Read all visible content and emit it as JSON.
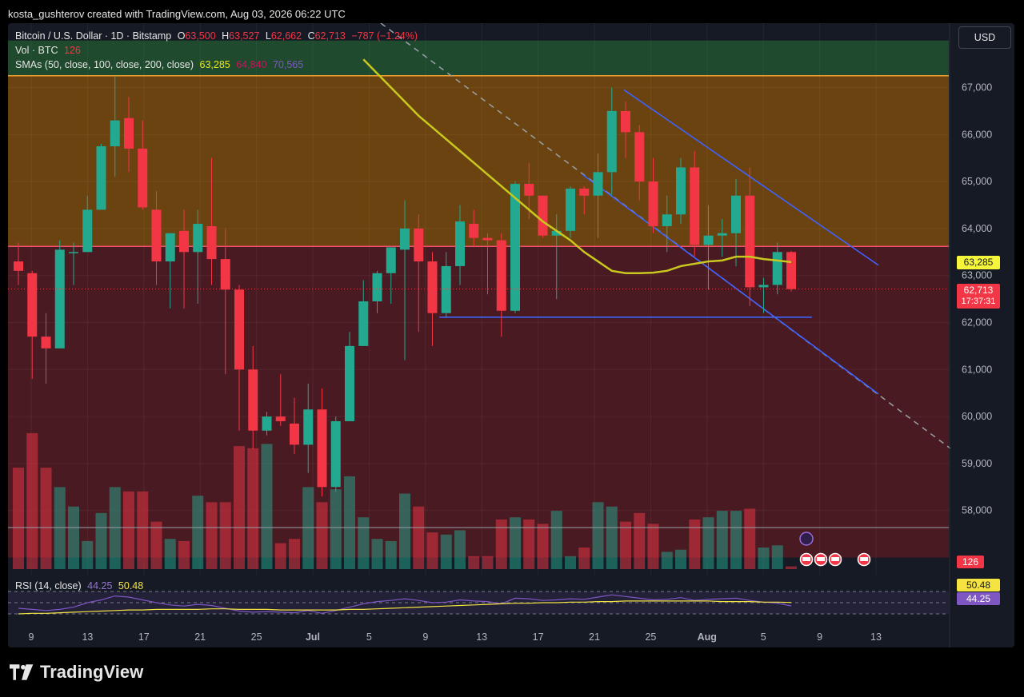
{
  "header": {
    "attribution": "kosta_gushterov created with TradingView.com, Aug 03, 2026 06:22 UTC"
  },
  "legend": {
    "symbol": "Bitcoin / U.S. Dollar · 1D · Bitstamp",
    "o_label": "O",
    "o": "63,500",
    "h_label": "H",
    "h": "63,527",
    "l_label": "L",
    "l": "62,662",
    "c_label": "C",
    "c": "62,713",
    "change": "−787 (−1.24%)",
    "vol_label": "Vol · BTC",
    "vol": "126",
    "sma_label": "SMAs (50, close, 100, close, 200, close)",
    "sma50": "63,285",
    "sma100": "64,840",
    "sma200": "70,565"
  },
  "rsi_legend": {
    "label": "RSI (14, close)",
    "rsi": "44.25",
    "ma": "50.48"
  },
  "currency": "USD",
  "tags": {
    "sma": "63,285",
    "price": "62,713",
    "countdown": "17:37:31",
    "volume": "126",
    "rsi_ma": "50.48",
    "rsi": "44.25"
  },
  "footer": {
    "brand": "TradingView"
  },
  "colors": {
    "up": "#22a98f",
    "down": "#f23645",
    "sma": "#c8c81e",
    "trend": "#2962ff",
    "rsi": "#7e57c2"
  },
  "chart_data": {
    "type": "candlestick",
    "interval": "1D",
    "y_range": [
      57000,
      68000
    ],
    "y_ticks": [
      "67,000",
      "66,000",
      "65,000",
      "64,000",
      "63,000",
      "62,000",
      "61,000",
      "60,000",
      "59,000",
      "58,000"
    ],
    "x_ticks": [
      "9",
      "13",
      "17",
      "21",
      "25",
      "Jul",
      "5",
      "9",
      "13",
      "17",
      "21",
      "25",
      "Aug",
      "5",
      "9",
      "13"
    ],
    "zones": [
      {
        "from": 67250,
        "to": 68000,
        "color": "green"
      },
      {
        "from": 63620,
        "to": 67250,
        "color": "orange"
      },
      {
        "from": 57000,
        "to": 63620,
        "color": "red"
      }
    ],
    "horizontal_lines": [
      67250,
      63620,
      62113
    ],
    "candles": [
      {
        "o": 63300,
        "h": 63700,
        "l": 62800,
        "c": 63100,
        "v": 4700
      },
      {
        "o": 63050,
        "h": 63100,
        "l": 60800,
        "c": 61700,
        "v": 6300
      },
      {
        "o": 61700,
        "h": 62200,
        "l": 60700,
        "c": 61450,
        "v": 4700
      },
      {
        "o": 61450,
        "h": 63750,
        "l": 61450,
        "c": 63550,
        "v": 3800
      },
      {
        "o": 63500,
        "h": 63700,
        "l": 62800,
        "c": 63500,
        "v": 2900
      },
      {
        "o": 63500,
        "h": 64700,
        "l": 63500,
        "c": 64400,
        "v": 1300
      },
      {
        "o": 64400,
        "h": 65800,
        "l": 64400,
        "c": 65750,
        "v": 2600
      },
      {
        "o": 65750,
        "h": 67250,
        "l": 65100,
        "c": 66300,
        "v": 3800
      },
      {
        "o": 66350,
        "h": 66800,
        "l": 65200,
        "c": 65700,
        "v": 3600
      },
      {
        "o": 65700,
        "h": 66300,
        "l": 64400,
        "c": 64450,
        "v": 3600
      },
      {
        "o": 64400,
        "h": 64800,
        "l": 62800,
        "c": 63300,
        "v": 2200
      },
      {
        "o": 63300,
        "h": 63900,
        "l": 62300,
        "c": 63900,
        "v": 1400
      },
      {
        "o": 63950,
        "h": 64400,
        "l": 62300,
        "c": 63500,
        "v": 1300
      },
      {
        "o": 63500,
        "h": 64400,
        "l": 62400,
        "c": 64100,
        "v": 3400
      },
      {
        "o": 64050,
        "h": 65500,
        "l": 62800,
        "c": 63350,
        "v": 3100
      },
      {
        "o": 63350,
        "h": 64000,
        "l": 60900,
        "c": 62700,
        "v": 3100
      },
      {
        "o": 62700,
        "h": 62800,
        "l": 59700,
        "c": 61000,
        "v": 5700
      },
      {
        "o": 61000,
        "h": 61500,
        "l": 59300,
        "c": 59700,
        "v": 5600
      },
      {
        "o": 59700,
        "h": 60100,
        "l": 59600,
        "c": 60000,
        "v": 5800
      },
      {
        "o": 60000,
        "h": 60900,
        "l": 59800,
        "c": 59900,
        "v": 1200
      },
      {
        "o": 59850,
        "h": 60400,
        "l": 59200,
        "c": 59400,
        "v": 1400
      },
      {
        "o": 59400,
        "h": 60700,
        "l": 58800,
        "c": 60150,
        "v": 3800
      },
      {
        "o": 60150,
        "h": 60600,
        "l": 58300,
        "c": 58500,
        "v": 3100
      },
      {
        "o": 58500,
        "h": 60000,
        "l": 58400,
        "c": 59900,
        "v": 3700
      },
      {
        "o": 59900,
        "h": 61800,
        "l": 59900,
        "c": 61500,
        "v": 4300
      },
      {
        "o": 61500,
        "h": 62900,
        "l": 61500,
        "c": 62450,
        "v": 2400
      },
      {
        "o": 62450,
        "h": 63100,
        "l": 62200,
        "c": 63050,
        "v": 1400
      },
      {
        "o": 63050,
        "h": 63600,
        "l": 62400,
        "c": 63600,
        "v": 1300
      },
      {
        "o": 63550,
        "h": 64600,
        "l": 61200,
        "c": 64000,
        "v": 3500
      },
      {
        "o": 64000,
        "h": 64300,
        "l": 61800,
        "c": 63300,
        "v": 2900
      },
      {
        "o": 63300,
        "h": 63500,
        "l": 61500,
        "c": 62200,
        "v": 1700
      },
      {
        "o": 62200,
        "h": 63500,
        "l": 62100,
        "c": 63200,
        "v": 1600
      },
      {
        "o": 63200,
        "h": 64500,
        "l": 62800,
        "c": 64150,
        "v": 1800
      },
      {
        "o": 64100,
        "h": 64400,
        "l": 63600,
        "c": 63800,
        "v": 600
      },
      {
        "o": 63800,
        "h": 63900,
        "l": 62600,
        "c": 63750,
        "v": 600
      },
      {
        "o": 63750,
        "h": 63900,
        "l": 61700,
        "c": 62250,
        "v": 2300
      },
      {
        "o": 62250,
        "h": 65000,
        "l": 62200,
        "c": 64950,
        "v": 2400
      },
      {
        "o": 64950,
        "h": 65400,
        "l": 64200,
        "c": 64700,
        "v": 2300
      },
      {
        "o": 64700,
        "h": 64700,
        "l": 63800,
        "c": 63850,
        "v": 2100
      },
      {
        "o": 63850,
        "h": 64300,
        "l": 62500,
        "c": 63950,
        "v": 2700
      },
      {
        "o": 63950,
        "h": 64900,
        "l": 63800,
        "c": 64850,
        "v": 600
      },
      {
        "o": 64850,
        "h": 64900,
        "l": 64300,
        "c": 64700,
        "v": 1000
      },
      {
        "o": 64700,
        "h": 65600,
        "l": 63800,
        "c": 65200,
        "v": 3100
      },
      {
        "o": 65200,
        "h": 67000,
        "l": 64700,
        "c": 66500,
        "v": 2900
      },
      {
        "o": 66500,
        "h": 66700,
        "l": 65500,
        "c": 66050,
        "v": 2200
      },
      {
        "o": 66050,
        "h": 66200,
        "l": 64600,
        "c": 65000,
        "v": 2600
      },
      {
        "o": 65000,
        "h": 65500,
        "l": 63900,
        "c": 64050,
        "v": 2100
      },
      {
        "o": 64050,
        "h": 64700,
        "l": 63500,
        "c": 64300,
        "v": 800
      },
      {
        "o": 64300,
        "h": 65500,
        "l": 64100,
        "c": 65300,
        "v": 900
      },
      {
        "o": 65300,
        "h": 65650,
        "l": 63400,
        "c": 63650,
        "v": 2300
      },
      {
        "o": 63650,
        "h": 64500,
        "l": 62700,
        "c": 63850,
        "v": 2400
      },
      {
        "o": 63850,
        "h": 64200,
        "l": 63400,
        "c": 63900,
        "v": 2700
      },
      {
        "o": 63900,
        "h": 65050,
        "l": 63200,
        "c": 64700,
        "v": 2700
      },
      {
        "o": 64700,
        "h": 65300,
        "l": 62350,
        "c": 62750,
        "v": 2800
      },
      {
        "o": 62750,
        "h": 62950,
        "l": 62200,
        "c": 62800,
        "v": 1000
      },
      {
        "o": 62800,
        "h": 63700,
        "l": 62600,
        "c": 63500,
        "v": 1100
      },
      {
        "o": 63500,
        "h": 63527,
        "l": 62662,
        "c": 62713,
        "v": 126
      }
    ],
    "sma50": [
      null,
      null,
      null,
      null,
      null,
      null,
      null,
      null,
      null,
      null,
      null,
      null,
      null,
      null,
      null,
      null,
      null,
      null,
      null,
      null,
      null,
      null,
      null,
      null,
      null,
      67600,
      67300,
      67000,
      66700,
      66400,
      66150,
      65900,
      65650,
      65400,
      65150,
      64900,
      64650,
      64400,
      64150,
      63950,
      63750,
      63500,
      63300,
      63100,
      63050,
      63050,
      63060,
      63100,
      63200,
      63250,
      63300,
      63320,
      63400,
      63400,
      63350,
      63320,
      63285
    ],
    "rsi": {
      "range": [
        0,
        100
      ],
      "levels": [
        70,
        50,
        30
      ],
      "rsi_values": [
        40,
        38,
        36,
        38,
        42,
        50,
        55,
        62,
        60,
        55,
        50,
        46,
        44,
        47,
        45,
        40,
        35,
        33,
        34,
        33,
        32,
        36,
        31,
        36,
        42,
        48,
        52,
        54,
        57,
        54,
        50,
        51,
        55,
        53,
        52,
        48,
        58,
        57,
        54,
        55,
        57,
        56,
        60,
        64,
        61,
        58,
        55,
        56,
        59,
        54,
        56,
        57,
        58,
        54,
        51,
        49,
        44.25
      ],
      "ma_values": [
        30,
        31,
        31,
        32,
        33,
        34,
        35,
        36,
        37,
        37,
        38,
        38,
        38,
        38,
        39,
        39,
        38,
        38,
        38,
        37,
        37,
        37,
        37,
        37,
        38,
        38,
        39,
        40,
        41,
        42,
        43,
        44,
        45,
        46,
        47,
        48,
        49,
        49,
        50,
        50,
        51,
        51,
        52,
        52,
        53,
        53,
        53,
        53,
        53,
        53,
        53,
        52,
        52,
        52,
        51,
        51,
        50.48
      ]
    }
  }
}
